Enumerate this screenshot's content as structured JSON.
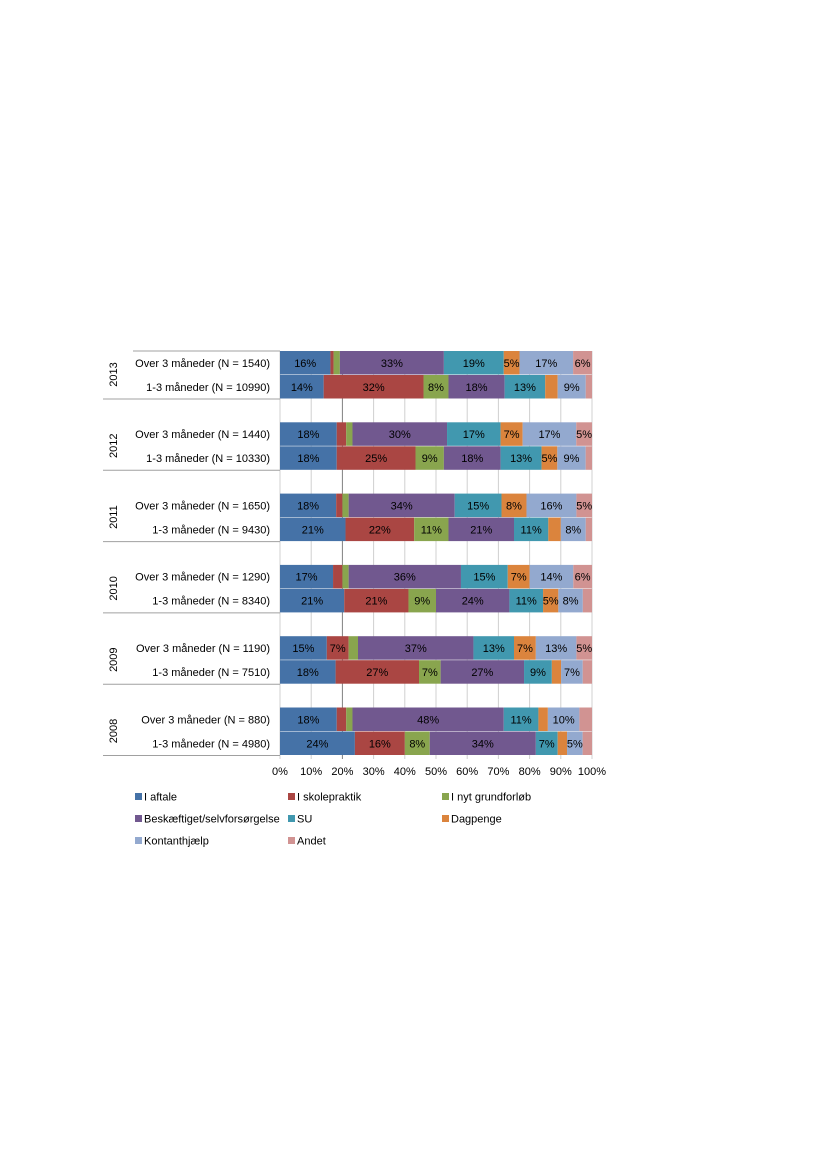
{
  "chart_data": {
    "type": "bar",
    "orientation": "horizontal",
    "stacked": "percent",
    "xlim": [
      0,
      100
    ],
    "x_ticks": [
      "0%",
      "10%",
      "20%",
      "30%",
      "40%",
      "50%",
      "60%",
      "70%",
      "80%",
      "90%",
      "100%"
    ],
    "grid": true,
    "legend_position": "bottom",
    "series": [
      {
        "name": "I aftale",
        "color": "#4572A7"
      },
      {
        "name": "I skolepraktik",
        "color": "#AA4643"
      },
      {
        "name": "I nyt grundforløb",
        "color": "#89A54E"
      },
      {
        "name": "Beskæftiget/selvforsørgelse",
        "color": "#71588F"
      },
      {
        "name": "SU",
        "color": "#4198AF"
      },
      {
        "name": "Dagpenge",
        "color": "#DB843D"
      },
      {
        "name": "Kontanthjælp",
        "color": "#93A9CF"
      },
      {
        "name": "Andet",
        "color": "#D19392"
      }
    ],
    "groups": [
      {
        "year": "2013",
        "rows": [
          {
            "label": "Over 3 måneder (N = 1540)",
            "values": [
              16,
              1,
              2,
              33,
              19,
              5,
              17,
              6
            ]
          },
          {
            "label": "1-3 måneder (N = 10990)",
            "values": [
              14,
              32,
              8,
              18,
              13,
              4,
              9,
              2
            ]
          }
        ]
      },
      {
        "year": "2012",
        "rows": [
          {
            "label": "Over 3 måneder (N = 1440)",
            "values": [
              18,
              3,
              2,
              30,
              17,
              7,
              17,
              5
            ]
          },
          {
            "label": "1-3 måneder (N = 10330)",
            "values": [
              18,
              25,
              9,
              18,
              13,
              5,
              9,
              2
            ]
          }
        ]
      },
      {
        "year": "2011",
        "rows": [
          {
            "label": "Over 3 måneder (N = 1650)",
            "values": [
              18,
              2,
              2,
              34,
              15,
              8,
              16,
              5
            ]
          },
          {
            "label": "1-3 måneder (N = 9430)",
            "values": [
              21,
              22,
              11,
              21,
              11,
              4,
              8,
              2
            ]
          }
        ]
      },
      {
        "year": "2010",
        "rows": [
          {
            "label": "Over 3 måneder (N = 1290)",
            "values": [
              17,
              3,
              2,
              36,
              15,
              7,
              14,
              6
            ]
          },
          {
            "label": "1-3 måneder (N = 8340)",
            "values": [
              21,
              21,
              9,
              24,
              11,
              5,
              8,
              3
            ]
          }
        ]
      },
      {
        "year": "2009",
        "rows": [
          {
            "label": "Over 3 måneder (N = 1190)",
            "values": [
              15,
              7,
              3,
              37,
              13,
              7,
              13,
              5
            ]
          },
          {
            "label": "1-3 måneder (N = 7510)",
            "values": [
              18,
              27,
              7,
              27,
              9,
              3,
              7,
              3
            ]
          }
        ]
      },
      {
        "year": "2008",
        "rows": [
          {
            "label": "Over 3 måneder (N = 880)",
            "values": [
              18,
              3,
              2,
              48,
              11,
              3,
              10,
              4
            ]
          },
          {
            "label": "1-3 måneder (N = 4980)",
            "values": [
              24,
              16,
              8,
              34,
              7,
              3,
              5,
              3
            ]
          }
        ]
      }
    ],
    "label_min_value": 5
  }
}
